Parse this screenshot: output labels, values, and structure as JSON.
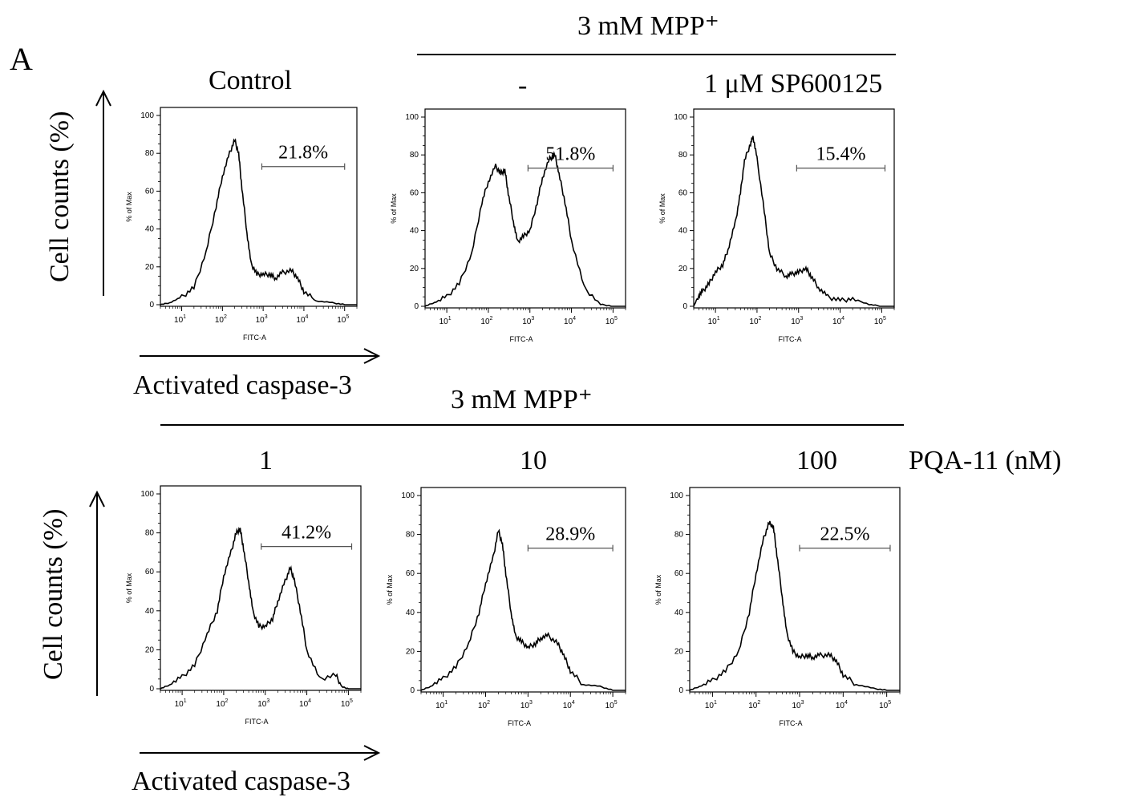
{
  "panel_letter": "A",
  "top_group_label": "3 mM MPP⁺",
  "bottom_group_label": "3 mM MPP⁺",
  "treatment_label": "PQA-11 (nM)",
  "y_axis_label": "Cell counts (%)",
  "x_axis_label": "Activated caspase-3",
  "chart_data": [
    {
      "type": "line",
      "title": "Control",
      "gate_value": "21.8%",
      "xlabel": "FITC-A",
      "ylabel": "% of Max",
      "xscale": "log",
      "xlim": [
        3,
        200000
      ],
      "ylim": [
        0,
        100
      ],
      "yticks": [
        "0",
        "20",
        "40",
        "60",
        "80",
        "100"
      ],
      "x": [
        3,
        5,
        10,
        20,
        40,
        70,
        100,
        150,
        200,
        250,
        300,
        400,
        500,
        700,
        1000,
        1500,
        2000,
        3000,
        5000,
        7000,
        10000,
        20000,
        50000,
        100000
      ],
      "y": [
        0,
        1,
        4,
        9,
        28,
        52,
        68,
        80,
        87,
        80,
        62,
        38,
        22,
        16,
        16,
        16,
        14,
        17,
        18,
        14,
        7,
        2,
        1,
        0
      ]
    },
    {
      "type": "line",
      "title": "-",
      "gate_value": "51.8%",
      "xlabel": "FITC-A",
      "ylabel": "% of Max",
      "xscale": "log",
      "xlim": [
        3,
        200000
      ],
      "ylim": [
        0,
        100
      ],
      "yticks": [
        "0",
        "20",
        "40",
        "60",
        "80",
        "100"
      ],
      "x": [
        3,
        5,
        10,
        20,
        40,
        70,
        100,
        150,
        200,
        250,
        300,
        400,
        500,
        700,
        1000,
        1500,
        2000,
        3000,
        4000,
        5000,
        7000,
        10000,
        20000,
        50000,
        100000
      ],
      "y": [
        0,
        2,
        5,
        12,
        28,
        55,
        66,
        74,
        70,
        72,
        60,
        45,
        34,
        37,
        40,
        55,
        68,
        78,
        80,
        70,
        55,
        35,
        10,
        1,
        0
      ]
    },
    {
      "type": "line",
      "title": "1 μM SP600125",
      "gate_value": "15.4%",
      "xlabel": "FITC-A",
      "ylabel": "% of Max",
      "xscale": "log",
      "xlim": [
        3,
        200000
      ],
      "ylim": [
        0,
        100
      ],
      "yticks": [
        "0",
        "20",
        "40",
        "60",
        "80",
        "100"
      ],
      "x": [
        3,
        4,
        5,
        7,
        10,
        15,
        20,
        30,
        40,
        50,
        70,
        80,
        100,
        150,
        200,
        300,
        500,
        700,
        1000,
        1500,
        2000,
        3000,
        5000,
        10000,
        20000,
        50000,
        100000
      ],
      "y": [
        0,
        6,
        8,
        12,
        18,
        22,
        30,
        44,
        60,
        77,
        86,
        90,
        78,
        50,
        28,
        20,
        16,
        17,
        18,
        20,
        16,
        10,
        5,
        3,
        4,
        1,
        0
      ]
    },
    {
      "type": "line",
      "title": "1",
      "gate_value": "41.2%",
      "xlabel": "FITC-A",
      "ylabel": "% of Max",
      "xscale": "log",
      "xlim": [
        3,
        200000
      ],
      "ylim": [
        0,
        100
      ],
      "yticks": [
        "0",
        "20",
        "40",
        "60",
        "80",
        "100"
      ],
      "x": [
        3,
        5,
        10,
        20,
        40,
        70,
        100,
        150,
        200,
        250,
        300,
        400,
        500,
        700,
        1000,
        1500,
        2000,
        3000,
        4000,
        5000,
        7000,
        10000,
        20000,
        50000,
        70000,
        100000
      ],
      "y": [
        0,
        2,
        6,
        12,
        28,
        40,
        58,
        70,
        80,
        82,
        72,
        55,
        40,
        32,
        32,
        36,
        45,
        55,
        62,
        56,
        40,
        20,
        5,
        7,
        1,
        0
      ]
    },
    {
      "type": "line",
      "title": "10",
      "gate_value": "28.9%",
      "xlabel": "FITC-A",
      "ylabel": "% of Max",
      "xscale": "log",
      "xlim": [
        3,
        200000
      ],
      "ylim": [
        0,
        100
      ],
      "yticks": [
        "0",
        "20",
        "40",
        "60",
        "80",
        "100"
      ],
      "x": [
        3,
        5,
        10,
        20,
        40,
        70,
        100,
        150,
        200,
        250,
        300,
        400,
        500,
        700,
        1000,
        1500,
        2000,
        3000,
        5000,
        7000,
        10000,
        20000,
        50000,
        100000
      ],
      "y": [
        0,
        2,
        6,
        12,
        24,
        40,
        55,
        68,
        82,
        75,
        60,
        40,
        28,
        25,
        22,
        24,
        27,
        28,
        24,
        18,
        10,
        3,
        2,
        0
      ]
    },
    {
      "type": "line",
      "title": "100",
      "gate_value": "22.5%",
      "xlabel": "FITC-A",
      "ylabel": "% of Max",
      "xscale": "log",
      "xlim": [
        3,
        200000
      ],
      "ylim": [
        0,
        100
      ],
      "yticks": [
        "0",
        "20",
        "40",
        "60",
        "80",
        "100"
      ],
      "x": [
        3,
        5,
        10,
        20,
        40,
        70,
        100,
        150,
        200,
        250,
        300,
        400,
        500,
        700,
        1000,
        1500,
        2000,
        3000,
        5000,
        7000,
        10000,
        20000,
        50000,
        100000
      ],
      "y": [
        0,
        2,
        5,
        10,
        20,
        40,
        60,
        78,
        86,
        84,
        70,
        48,
        30,
        20,
        17,
        18,
        17,
        18,
        18,
        15,
        8,
        3,
        1,
        0
      ]
    }
  ]
}
